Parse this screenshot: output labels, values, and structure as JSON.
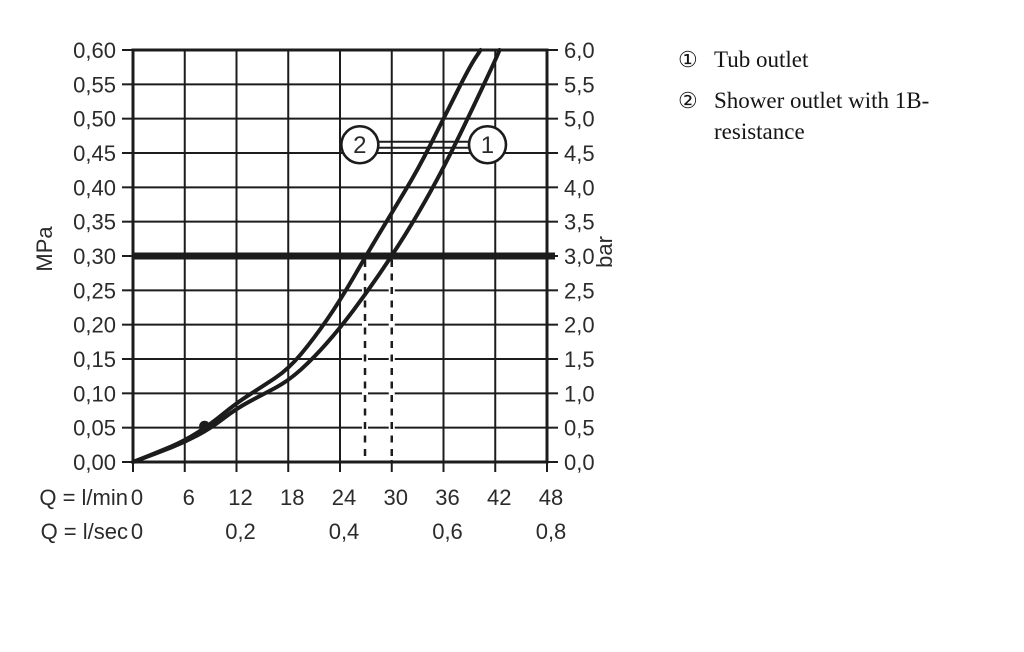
{
  "chart_data": {
    "type": "line",
    "title": "",
    "x_axis": {
      "row1_label": "Q = l/min",
      "row1_ticks": [
        "0",
        "6",
        "12",
        "18",
        "24",
        "30",
        "36",
        "42",
        "48"
      ],
      "row1_tick_values_lmin": [
        0,
        6,
        12,
        18,
        24,
        30,
        36,
        42,
        48
      ],
      "row2_label": "Q = l/sec",
      "row2_ticks": [
        {
          "text": "0",
          "at_lmin": 0
        },
        {
          "text": "0,2",
          "at_lmin": 12
        },
        {
          "text": "0,4",
          "at_lmin": 24
        },
        {
          "text": "0,6",
          "at_lmin": 36
        },
        {
          "text": "0,8",
          "at_lmin": 48
        }
      ],
      "range_lmin": [
        0,
        48
      ],
      "grid_step_lmin": 6
    },
    "y_axis_left": {
      "label": "MPa",
      "ticks": [
        "0,60",
        "0,55",
        "0,50",
        "0,45",
        "0,40",
        "0,35",
        "0,30",
        "0,25",
        "0,20",
        "0,15",
        "0,10",
        "0,05",
        "0,00"
      ],
      "range_mpa": [
        0,
        0.6
      ],
      "step_mpa": 0.05
    },
    "y_axis_right": {
      "label": "bar",
      "ticks": [
        "6,0",
        "5,5",
        "5,0",
        "4,5",
        "4,0",
        "3,5",
        "3,0",
        "2,5",
        "2,0",
        "1,5",
        "1,0",
        "0,5",
        "0,0"
      ],
      "range_bar": [
        0,
        6
      ],
      "step_bar": 0.5
    },
    "grid": true,
    "legend_position": "right",
    "series": [
      {
        "id": "1",
        "name": "Tub outlet",
        "points_lmin_mpa": [
          [
            0,
            0
          ],
          [
            3,
            0.014
          ],
          [
            6,
            0.029
          ],
          [
            9,
            0.049
          ],
          [
            12,
            0.078
          ],
          [
            15,
            0.098
          ],
          [
            18,
            0.118
          ],
          [
            21,
            0.152
          ],
          [
            24,
            0.195
          ],
          [
            27,
            0.245
          ],
          [
            30,
            0.3
          ],
          [
            33,
            0.36
          ],
          [
            36,
            0.428
          ],
          [
            39,
            0.505
          ],
          [
            42,
            0.585
          ],
          [
            42.5,
            0.6
          ]
        ]
      },
      {
        "id": "2",
        "name": "Shower outlet with 1B-resistance",
        "points_lmin_mpa": [
          [
            0,
            0
          ],
          [
            3,
            0.015
          ],
          [
            6,
            0.031
          ],
          [
            9,
            0.055
          ],
          [
            12,
            0.086
          ],
          [
            15,
            0.11
          ],
          [
            18,
            0.135
          ],
          [
            21,
            0.18
          ],
          [
            24,
            0.235
          ],
          [
            27,
            0.3
          ],
          [
            30,
            0.363
          ],
          [
            33,
            0.425
          ],
          [
            36,
            0.5
          ],
          [
            39,
            0.575
          ],
          [
            40.3,
            0.6
          ]
        ]
      }
    ],
    "annotations": {
      "bold_pressure_line_mpa": 0.3,
      "bold_pressure_line_bar": 3.0,
      "dashed_vlines_lmin": [
        26.9,
        30.0
      ],
      "marker_dot_lmin_mpa": [
        8.3,
        0.052
      ],
      "callouts": [
        {
          "label": "2",
          "center_lmin": 26.3,
          "center_mpa": 0.462
        },
        {
          "label": "1",
          "center_lmin": 41.1,
          "center_mpa": 0.462
        }
      ]
    },
    "colors": {
      "line": "#1c1c1c",
      "text": "#2b2b2b",
      "background": "#ffffff"
    }
  },
  "legend": {
    "items": [
      {
        "marker": "①",
        "label": "Tub outlet"
      },
      {
        "marker": "②",
        "label": "Shower outlet with 1B-resistance"
      }
    ]
  }
}
